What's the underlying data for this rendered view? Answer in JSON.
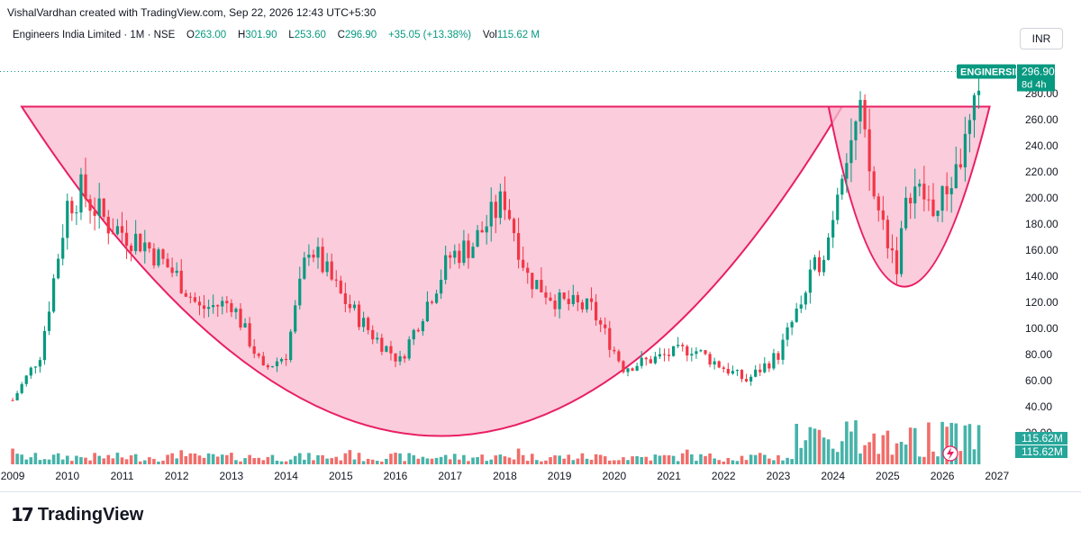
{
  "header": {
    "credit": "VishalVardhan created with TradingView.com, Sep 22, 2026 12:43 UTC+5:30",
    "currency": "INR"
  },
  "legend": {
    "symbol": "Engineers India Limited · 1M · NSE",
    "o_label": "O",
    "o_value": "263.00",
    "h_label": "H",
    "h_value": "301.90",
    "l_label": "L",
    "l_value": "253.60",
    "c_label": "C",
    "c_value": "296.90",
    "change": "+35.05 (+13.38%)",
    "vol_label": "Vol",
    "vol_value": "115.62 M"
  },
  "price_tag": {
    "ticker": "ENGINERSIN",
    "price": "296.90",
    "countdown": "8d 4h"
  },
  "volume_tags": [
    "115.62M",
    "115.62M"
  ],
  "footer": {
    "brand": "TradingView",
    "mark": "17"
  },
  "colors": {
    "up": "#089981",
    "down": "#f23645",
    "pattern_fill": "#f8bbd0",
    "pattern_stroke": "#e91e63",
    "up_volume": "#26a69a",
    "down_volume": "#ef5350"
  },
  "chart_data": {
    "type": "candlestick",
    "title": "Engineers India Limited · 1M · NSE",
    "x_axis": {
      "type": "time",
      "tick_labels": [
        "2009",
        "2010",
        "2011",
        "2012",
        "2013",
        "2014",
        "2015",
        "2016",
        "2017",
        "2018",
        "2019",
        "2020",
        "2021",
        "2022",
        "2023",
        "2024",
        "2025",
        "2026",
        "2027"
      ]
    },
    "y_axis": {
      "side": "right",
      "range": [
        20,
        305
      ],
      "tick_labels": [
        "280.00",
        "260.00",
        "240.00",
        "220.00",
        "200.00",
        "180.00",
        "160.00",
        "140.00",
        "120.00",
        "100.00",
        "80.00",
        "60.00",
        "40.00",
        "20.00"
      ]
    },
    "grid": false,
    "last_price": 296.9,
    "series": [
      {
        "name": "ENGINERSIN",
        "kind": "price",
        "approx_closes": [
          {
            "date": "2009-01",
            "close": 45
          },
          {
            "date": "2009-07",
            "close": 80
          },
          {
            "date": "2010-01",
            "close": 195
          },
          {
            "date": "2010-04",
            "close": 205
          },
          {
            "date": "2010-10",
            "close": 180
          },
          {
            "date": "2011-06",
            "close": 165
          },
          {
            "date": "2012-01",
            "close": 140
          },
          {
            "date": "2012-06",
            "close": 115
          },
          {
            "date": "2013-01",
            "close": 120
          },
          {
            "date": "2013-08",
            "close": 68
          },
          {
            "date": "2014-01",
            "close": 80
          },
          {
            "date": "2014-06",
            "close": 165
          },
          {
            "date": "2015-01",
            "close": 125
          },
          {
            "date": "2015-08",
            "close": 95
          },
          {
            "date": "2016-02",
            "close": 75
          },
          {
            "date": "2016-08",
            "close": 120
          },
          {
            "date": "2017-01",
            "close": 155
          },
          {
            "date": "2017-06",
            "close": 165
          },
          {
            "date": "2018-01",
            "close": 200
          },
          {
            "date": "2018-06",
            "close": 140
          },
          {
            "date": "2019-01",
            "close": 120
          },
          {
            "date": "2019-08",
            "close": 115
          },
          {
            "date": "2020-03",
            "close": 70
          },
          {
            "date": "2021-01",
            "close": 80
          },
          {
            "date": "2021-06",
            "close": 85
          },
          {
            "date": "2022-01",
            "close": 70
          },
          {
            "date": "2022-06",
            "close": 60
          },
          {
            "date": "2023-01",
            "close": 80
          },
          {
            "date": "2023-06",
            "close": 120
          },
          {
            "date": "2023-12",
            "close": 170
          },
          {
            "date": "2024-03",
            "close": 230
          },
          {
            "date": "2024-07",
            "close": 260
          },
          {
            "date": "2024-10",
            "close": 200
          },
          {
            "date": "2025-03",
            "close": 150
          },
          {
            "date": "2025-06",
            "close": 210
          },
          {
            "date": "2025-12",
            "close": 190
          },
          {
            "date": "2026-06",
            "close": 240
          },
          {
            "date": "2026-08",
            "close": 262
          },
          {
            "date": "2026-09",
            "close": 296.9
          }
        ]
      }
    ],
    "annotations": [
      {
        "kind": "cup",
        "from": "2009-01",
        "to": "2024-03",
        "rim_price": 270,
        "bottom_price": 15
      },
      {
        "kind": "handle",
        "from": "2024-03",
        "to": "2026-09",
        "rim_price": 270,
        "bottom_price": 132
      }
    ]
  }
}
